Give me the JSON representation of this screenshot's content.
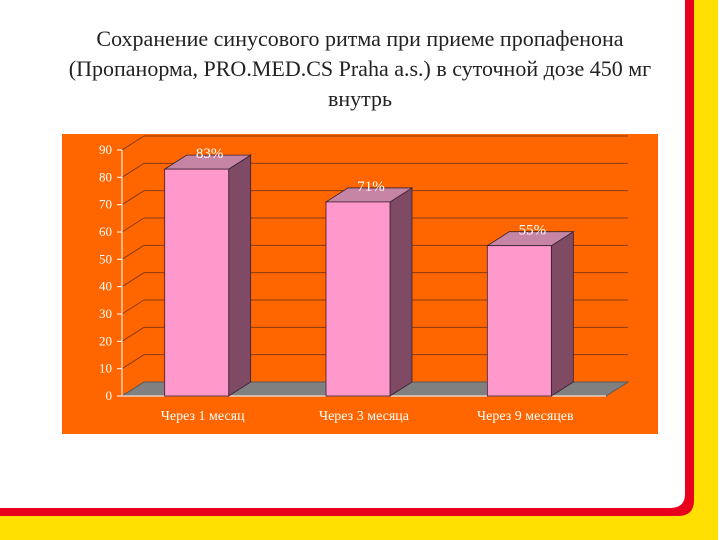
{
  "slide": {
    "title": "Сохранение синусового ритма при приеме пропафенона (Пропанорма, PRO.MED.CS Praha a.s.) в суточной дозе 450 мг внутрь"
  },
  "colors": {
    "background": "#FF6600",
    "bar_front": "#FF99CC",
    "bar_side": "#7F4A63",
    "bar_top": "#C785A6",
    "floor": "#808080",
    "frame_yellow": "#FFE000",
    "frame_red": "#E8001C"
  },
  "chart_data": {
    "type": "bar",
    "categories": [
      "Через 1 месяц",
      "Через 3 месяца",
      "Через 9 месяцев"
    ],
    "values": [
      83,
      71,
      55
    ],
    "data_labels": [
      "83%",
      "71%",
      "55%"
    ],
    "title": "",
    "xlabel": "",
    "ylabel": "",
    "ylim": [
      0,
      90
    ],
    "yticks": [
      0,
      10,
      20,
      30,
      40,
      50,
      60,
      70,
      80,
      90
    ],
    "ytick_labels": [
      "0",
      "10",
      "20",
      "30",
      "40",
      "50",
      "60",
      "70",
      "80",
      "90"
    ],
    "grid": true,
    "legend": false,
    "style": "3d-bar"
  }
}
